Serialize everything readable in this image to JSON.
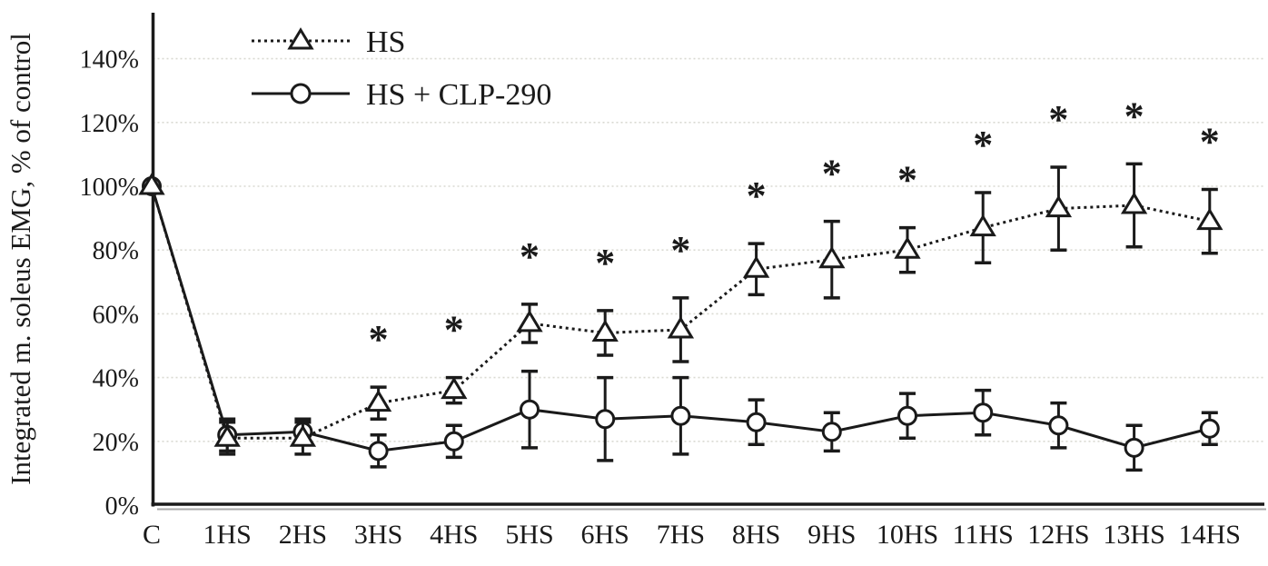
{
  "chart_data": {
    "type": "line",
    "title": "",
    "ylabel": "Integrated m. soleus EMG, % of control",
    "xlabel": "",
    "categories": [
      "C",
      "1HS",
      "2HS",
      "3HS",
      "4HS",
      "5HS",
      "6HS",
      "7HS",
      "8HS",
      "9HS",
      "10HS",
      "11HS",
      "12HS",
      "13HS",
      "14HS"
    ],
    "y_ticks": [
      0,
      20,
      40,
      60,
      80,
      100,
      120,
      140
    ],
    "y_tick_labels": [
      "0%",
      "20%",
      "40%",
      "60%",
      "80%",
      "100%",
      "120%",
      "140%"
    ],
    "ylim": [
      0,
      155
    ],
    "grid": "horizontal-dotted",
    "legend_position": "top-left-inside",
    "significance_marker": "*",
    "series": [
      {
        "name": "HS",
        "marker": "triangle-open",
        "line_style": "dotted",
        "color": "#1a1a1a",
        "values": [
          100,
          21,
          21,
          32,
          36,
          57,
          54,
          55,
          74,
          77,
          80,
          87,
          93,
          94,
          89
        ],
        "errors": [
          0,
          5,
          5,
          5,
          4,
          6,
          7,
          10,
          8,
          12,
          7,
          11,
          13,
          13,
          10
        ],
        "significant": [
          false,
          false,
          false,
          true,
          true,
          true,
          true,
          true,
          true,
          true,
          true,
          true,
          true,
          true,
          true
        ]
      },
      {
        "name": "HS + CLP-290",
        "marker": "circle-open",
        "line_style": "solid",
        "color": "#1a1a1a",
        "values": [
          100,
          22,
          23,
          17,
          20,
          30,
          27,
          28,
          26,
          23,
          28,
          29,
          25,
          18,
          24
        ],
        "errors": [
          0,
          5,
          4,
          5,
          5,
          12,
          13,
          12,
          7,
          6,
          7,
          7,
          7,
          7,
          5
        ],
        "significant": [
          false,
          false,
          false,
          false,
          false,
          false,
          false,
          false,
          false,
          false,
          false,
          false,
          false,
          false,
          false
        ]
      }
    ]
  },
  "colors": {
    "line": "#1a1a1a",
    "grid": "#d9d9d2",
    "background": "#ffffff",
    "axis_shadow": "#a9a9a9",
    "marker_fill": "#ffffff"
  }
}
